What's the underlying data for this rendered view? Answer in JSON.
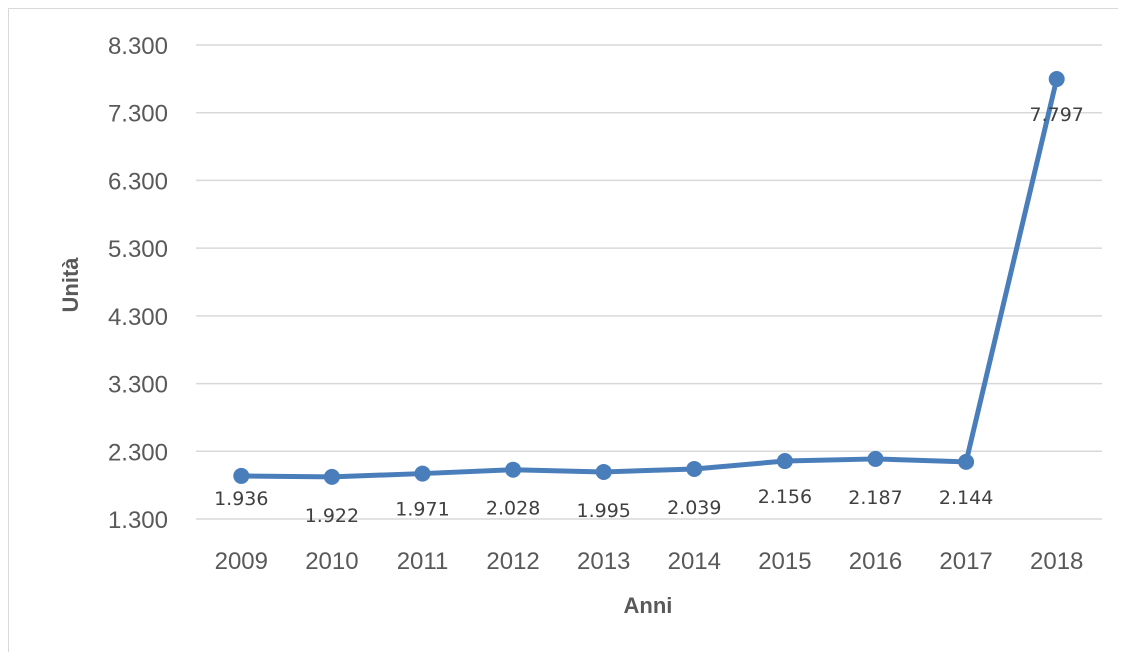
{
  "chart_data": {
    "type": "line",
    "title": "",
    "xlabel": "Anni",
    "ylabel": "Unità",
    "categories": [
      "2009",
      "2010",
      "2011",
      "2012",
      "2013",
      "2014",
      "2015",
      "2016",
      "2017",
      "2018"
    ],
    "series": [
      {
        "values": [
          1936,
          1922,
          1971,
          2028,
          1995,
          2039,
          2156,
          2187,
          2144,
          7797
        ],
        "data_labels": [
          "1.936",
          "1.922",
          "1.971",
          "2.028",
          "1.995",
          "2.039",
          "2.156",
          "2.187",
          "2.144",
          "7.797"
        ]
      }
    ],
    "yticks": [
      1300,
      2300,
      3300,
      4300,
      5300,
      6300,
      7300,
      8300
    ],
    "ytick_labels": [
      "1.300",
      "2.300",
      "3.300",
      "4.300",
      "5.300",
      "6.300",
      "7.300",
      "8.300"
    ],
    "ylim": [
      1300,
      8300
    ],
    "grid": true,
    "legend": "none",
    "colors": {
      "line": "#4a7ebb",
      "grid": "#d9d9d9",
      "text": "#595959"
    }
  }
}
